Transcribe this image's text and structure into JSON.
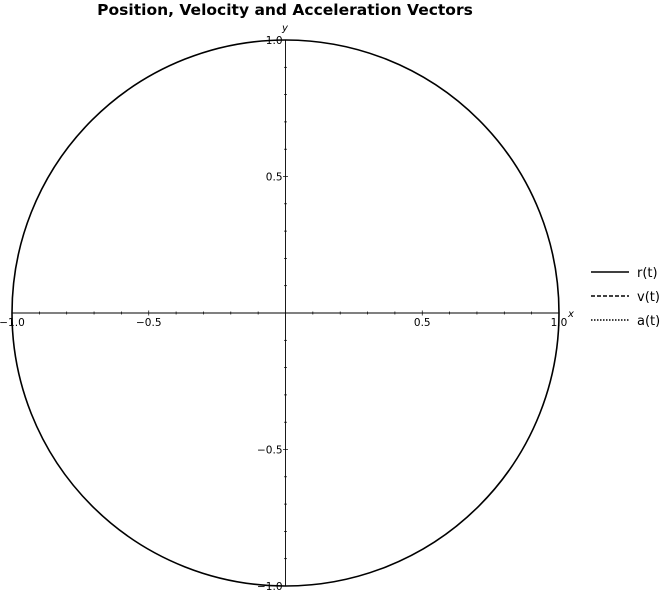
{
  "chart_data": {
    "type": "line",
    "title": "Position, Velocity and Acceleration Vectors",
    "xlabel": "x",
    "ylabel": "y",
    "xlim": [
      -1.0,
      1.0
    ],
    "ylim": [
      -1.0,
      1.0
    ],
    "x_ticks": [
      -1.0,
      -0.5,
      0.5,
      1.0
    ],
    "x_tick_labels": [
      "−1.0",
      "−0.5",
      "0.5",
      "1.0"
    ],
    "y_ticks": [
      -1.0,
      -0.5,
      0.5,
      1.0
    ],
    "y_tick_labels": [
      "−1.0",
      "−0.5",
      "0.5",
      "1.0"
    ],
    "grid": false,
    "legend_position": "right",
    "series": [
      {
        "name": "r(t)",
        "style": "solid",
        "shape": "circle",
        "center": [
          0,
          0
        ],
        "radius": 1.0
      },
      {
        "name": "v(t)",
        "style": "dashed",
        "values": []
      },
      {
        "name": "a(t)",
        "style": "dotted",
        "values": []
      }
    ],
    "colors": {
      "line": "#000000",
      "axis": "#000000",
      "background": "#ffffff"
    }
  }
}
